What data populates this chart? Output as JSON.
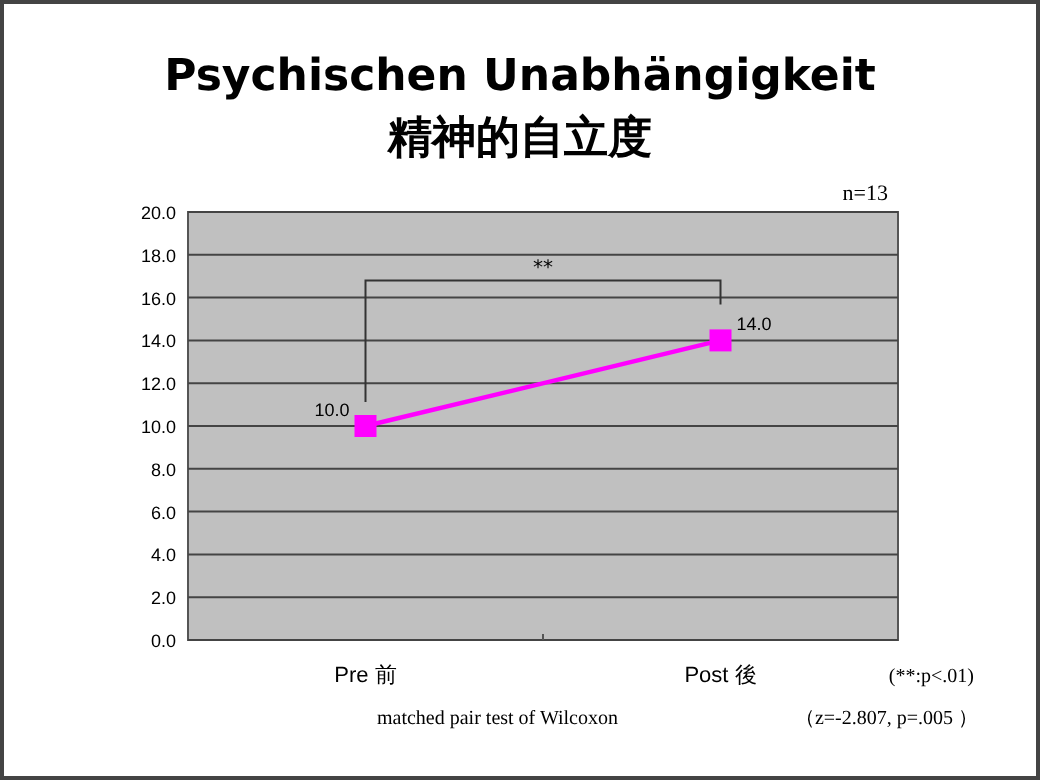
{
  "chart_data": {
    "type": "line",
    "title": "Psychischen Unabhängigkeit",
    "subtitle": "精神的自立度",
    "categories": [
      "Pre 前",
      "Post 後"
    ],
    "series": [
      {
        "color": "#ff00ff",
        "values": [
          10,
          14
        ],
        "value_labels": [
          "10.0",
          "14.0"
        ]
      }
    ],
    "ylim": [
      0,
      20
    ],
    "yticks": [
      {
        "value": 0,
        "label": "0.0"
      },
      {
        "value": 2,
        "label": "2.0"
      },
      {
        "value": 4,
        "label": "4.0"
      },
      {
        "value": 6,
        "label": "6.0"
      },
      {
        "value": 8,
        "label": "8.0"
      },
      {
        "value": 10,
        "label": "10.0"
      },
      {
        "value": 12,
        "label": "12.0"
      },
      {
        "value": 14,
        "label": "14.0"
      },
      {
        "value": 16,
        "label": "16.0"
      },
      {
        "value": 18,
        "label": "18.0"
      },
      {
        "value": 20,
        "label": "20.0"
      }
    ],
    "grid": "y",
    "marker": "square",
    "line_style": "solid",
    "annotations": [
      "n=13",
      "**",
      "(**:p<.01)",
      "matched pair test of Wilcoxon",
      "（z=-2.807, p=.005 ）"
    ]
  }
}
